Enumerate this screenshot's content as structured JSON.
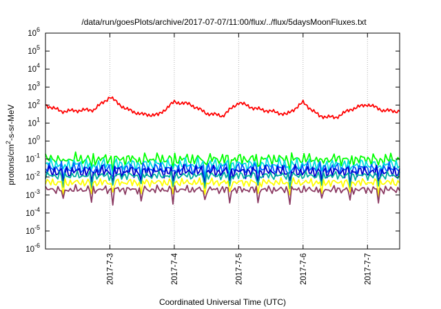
{
  "chart_data": {
    "type": "line",
    "title": "/data/run/goesPlots/archive/2017-07-07/11:00/flux/../flux/5daysMoonFluxes.txt",
    "xlabel": "Coordinated Universal Time (UTC)",
    "ylabel_parts": [
      "protons/cm",
      "2",
      "-s-sr-MeV"
    ],
    "y_scale": "log",
    "y_tick_base": "10",
    "y_tick_exponents": [
      "6",
      "5",
      "4",
      "3",
      "2",
      "1",
      "0",
      "-1",
      "-2",
      "-3",
      "-4",
      "-5",
      "-6"
    ],
    "ylim": [
      1e-06,
      1000000.0
    ],
    "xlim": [
      "2017-07-02 00:00",
      "2017-07-07 12:00"
    ],
    "x_ticks": [
      "2017-7-3",
      "2017-7-4",
      "2017-7-5",
      "2017-7-6",
      "2017-7-7"
    ],
    "grid": true,
    "legend": "none",
    "series": [
      {
        "color": "#ff0000",
        "points": [
          [
            "2017-07-02 00:00",
            100
          ],
          [
            "2017-07-02 06:00",
            45
          ],
          [
            "2017-07-02 12:00",
            50
          ],
          [
            "2017-07-02 18:00",
            55
          ],
          [
            "2017-07-03 00:00",
            280
          ],
          [
            "2017-07-03 06:00",
            60
          ],
          [
            "2017-07-03 12:00",
            30
          ],
          [
            "2017-07-03 18:00",
            28
          ],
          [
            "2017-07-04 00:00",
            150
          ],
          [
            "2017-07-04 06:00",
            110
          ],
          [
            "2017-07-04 12:00",
            35
          ],
          [
            "2017-07-04 18:00",
            25
          ],
          [
            "2017-07-05 00:00",
            140
          ],
          [
            "2017-07-05 06:00",
            65
          ],
          [
            "2017-07-05 12:00",
            45
          ],
          [
            "2017-07-05 18:00",
            30
          ],
          [
            "2017-07-06 00:00",
            140
          ],
          [
            "2017-07-06 06:00",
            25
          ],
          [
            "2017-07-06 12:00",
            20
          ],
          [
            "2017-07-06 18:00",
            60
          ],
          [
            "2017-07-07 00:00",
            110
          ],
          [
            "2017-07-07 06:00",
            50
          ],
          [
            "2017-07-07 12:00",
            45
          ]
        ]
      },
      {
        "color": "#00ff00",
        "level": 0.1
      },
      {
        "color": "#00e0e0",
        "level": 0.05
      },
      {
        "color": "#0060ff",
        "level": 0.03
      },
      {
        "color": "#0000cc",
        "level": 0.02
      },
      {
        "color": "#00b0a0",
        "level": 0.012
      },
      {
        "color": "#ffff00",
        "level": 0.005
      },
      {
        "color": "#8b3a62",
        "level": 0.002
      }
    ]
  }
}
